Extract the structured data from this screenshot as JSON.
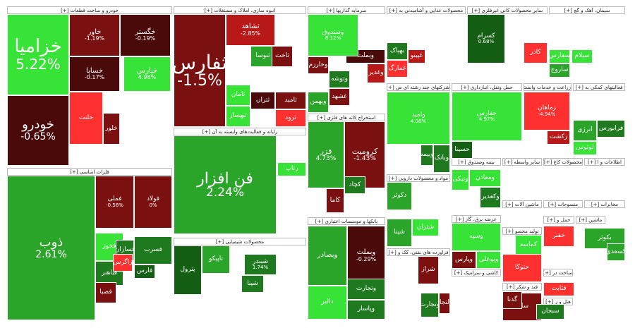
{
  "chart_data": {
    "type": "treemap",
    "colors": {
      "strong_up": "#36e336",
      "up": "#2aa52a",
      "mild_up": "#1f7a1f",
      "flat_up": "#155f15",
      "strong_down": "#ff3030",
      "down": "#b81818",
      "mild_down": "#7a1010",
      "flat_down": "#4a0a0a"
    },
    "sectors": [
      {
        "title": "خودرو و ساخت قطعات [+]"
      },
      {
        "title": "انبوه سازی، املاک و مستغلات [+]"
      },
      {
        "title": "سرمایه گذاریها [+]"
      },
      {
        "title": "محصولات غذایی و آشامیدنی به [+]"
      },
      {
        "title": "سایر محصولات کانی غیرفلزی [+]"
      },
      {
        "title": "سیمان، آهک و گچ [+]"
      },
      {
        "title": "رایانه و فعالیت‌های وابسته به آن [+]"
      },
      {
        "title": "استخراج کانه های فلزی [+]"
      },
      {
        "title": "شرکتهای چند رشته ای ص [+]"
      },
      {
        "title": "حمل ونقل، انبارداری [+]"
      },
      {
        "title": "زراعت و خدمات وابسته [+]"
      },
      {
        "title": "فعالیتهای کمکی به [+]"
      },
      {
        "title": "فلزات اساسی [+]"
      },
      {
        "title": "محصولات شیمیایی [+]"
      },
      {
        "title": "بانکها و موسسات اعتباری [+]"
      },
      {
        "title": "مواد و محصولات دارویی [+]"
      },
      {
        "title": "فراورده های نفتی، کک و [+]"
      },
      {
        "title": "بیمه وصندوق [+]"
      },
      {
        "title": "سایر واسطه [+]"
      },
      {
        "title": "محصولات کاغ [+]"
      },
      {
        "title": "اطلاعات و ا [+]"
      },
      {
        "title": "ماشین آلات [+]"
      },
      {
        "title": "منسوجات [+]"
      },
      {
        "title": "مخابرات [+]"
      },
      {
        "title": "عرضه برق، گاز [+]"
      },
      {
        "title": "حمل و [+]"
      },
      {
        "title": "ماشین [+]"
      },
      {
        "title": "تولید محصو [+]"
      },
      {
        "title": "کاشی و سرامیک [+]"
      },
      {
        "title": "قند و شکر [+]"
      },
      {
        "title": "ساخت در [+]"
      },
      {
        "title": "هتل و ر [+]"
      }
    ],
    "tiles": [
      {
        "name": "خزامیا",
        "change": "5.22%",
        "trend": "strong_up"
      },
      {
        "name": "خودرو",
        "change": "-0.65%",
        "trend": "flat_down"
      },
      {
        "name": "خاور",
        "change": "-1.19%",
        "trend": "mild_down"
      },
      {
        "name": "خگستر",
        "change": "-0.19%",
        "trend": "flat_down"
      },
      {
        "name": "خساپا",
        "change": "-0.17%",
        "trend": "flat_down"
      },
      {
        "name": "خپارس",
        "change": "4.98%",
        "trend": "strong_up"
      },
      {
        "name": "خلنت",
        "change": "",
        "trend": "strong_down"
      },
      {
        "name": "خلور",
        "change": "",
        "trend": "mild_down"
      },
      {
        "name": "ثفارس",
        "change": "-1.5%",
        "trend": "mild_down"
      },
      {
        "name": "ثشاهد",
        "change": "-2.85%",
        "trend": "down"
      },
      {
        "name": "ثنوسا",
        "change": "",
        "trend": "up"
      },
      {
        "name": "ثامان",
        "change": "",
        "trend": "strong_up"
      },
      {
        "name": "ثبهساز",
        "change": "",
        "trend": "strong_up"
      },
      {
        "name": "ثتران",
        "change": "",
        "trend": "flat_down"
      },
      {
        "name": "ثاخت",
        "change": "",
        "trend": "mild_down"
      },
      {
        "name": "ثامید",
        "change": "",
        "trend": "mild_down"
      },
      {
        "name": "ثرود",
        "change": "",
        "trend": "strong_down"
      },
      {
        "name": "وبملت",
        "change": "",
        "trend": "flat_down"
      },
      {
        "name": "وصندوق",
        "change": "8.12%",
        "trend": "strong_up"
      },
      {
        "name": "وخارزم",
        "change": "",
        "trend": "mild_down"
      },
      {
        "name": "وغدیر",
        "change": "",
        "trend": "down"
      },
      {
        "name": "وبهمن",
        "change": "",
        "trend": "up"
      },
      {
        "name": "وتوشه",
        "change": "",
        "trend": "mild_up"
      },
      {
        "name": "غشهد",
        "change": "",
        "trend": "mild_down"
      },
      {
        "name": "بهپاک",
        "change": "",
        "trend": "mild_up"
      },
      {
        "name": "غمارگ",
        "change": "",
        "trend": "strong_down"
      },
      {
        "name": "غپینو",
        "change": "",
        "trend": "down"
      },
      {
        "name": "کسرام",
        "change": "0.68%",
        "trend": "flat_up"
      },
      {
        "name": "کاذر",
        "change": "",
        "trend": "strong_down"
      },
      {
        "name": "سفارس",
        "change": "",
        "trend": "strong_up"
      },
      {
        "name": "ساروج",
        "change": "",
        "trend": "up"
      },
      {
        "name": "سیلام",
        "change": "",
        "trend": "strong_up"
      },
      {
        "name": "فن افزار",
        "change": "2.24%",
        "trend": "up"
      },
      {
        "name": "رتاپ",
        "change": "",
        "trend": "strong_up"
      },
      {
        "name": "فزر",
        "change": "4.73%",
        "trend": "up"
      },
      {
        "name": "کرومیت",
        "change": "-1.43%",
        "trend": "mild_down"
      },
      {
        "name": "کچاد",
        "change": "",
        "trend": "mild_up"
      },
      {
        "name": "کاما",
        "change": "",
        "trend": "mild_down"
      },
      {
        "name": "وامید",
        "change": "4.08%",
        "trend": "strong_up"
      },
      {
        "name": "وبانک",
        "change": "",
        "trend": "mild_up"
      },
      {
        "name": "وبیمه",
        "change": "",
        "trend": "mild_up"
      },
      {
        "name": "حفارس",
        "change": "4.97%",
        "trend": "strong_up"
      },
      {
        "name": "حسینا",
        "change": "",
        "trend": "flat_up"
      },
      {
        "name": "زماهان",
        "change": "-4.94%",
        "trend": "strong_down"
      },
      {
        "name": "زکشت",
        "change": "",
        "trend": "down"
      },
      {
        "name": "انرژی",
        "change": "",
        "trend": "up"
      },
      {
        "name": "لوتوس",
        "change": "",
        "trend": "strong_up"
      },
      {
        "name": "فرابورس",
        "change": "",
        "trend": "mild_up"
      },
      {
        "name": "ذوب",
        "change": "2.61%",
        "trend": "up"
      },
      {
        "name": "فملی",
        "change": "-0.58%",
        "trend": "mild_down"
      },
      {
        "name": "فولاد",
        "change": "0%",
        "trend": "mild_down"
      },
      {
        "name": "فخوز",
        "change": "",
        "trend": "strong_up"
      },
      {
        "name": "فسرب",
        "change": "",
        "trend": "mild_up"
      },
      {
        "name": "فباهنر",
        "change": "",
        "trend": "mild_up"
      },
      {
        "name": "فصبا",
        "change": "",
        "trend": "mild_down"
      },
      {
        "name": "فسازان",
        "change": "",
        "trend": "mild_up"
      },
      {
        "name": "زاگرس",
        "change": "",
        "trend": "strong_down"
      },
      {
        "name": "فارس",
        "change": "",
        "trend": "flat_up"
      },
      {
        "name": "پترول",
        "change": "",
        "trend": "flat_up"
      },
      {
        "name": "تاپیکو",
        "change": "",
        "trend": "up"
      },
      {
        "name": "شپنا",
        "change": "",
        "trend": "mild_up"
      },
      {
        "name": "شبندر",
        "change": "1.74%",
        "trend": "mild_up"
      },
      {
        "name": "وبصادر",
        "change": "",
        "trend": "up"
      },
      {
        "name": "وبملت",
        "change": "-0.29%",
        "trend": "flat_down"
      },
      {
        "name": "وتجارت",
        "change": "",
        "trend": "mild_up"
      },
      {
        "name": "وپاسار",
        "change": "",
        "trend": "mild_up"
      },
      {
        "name": "دالبر",
        "change": "",
        "trend": "strong_up"
      },
      {
        "name": "دکوثر",
        "change": "",
        "trend": "up"
      },
      {
        "name": "شپنا",
        "change": "",
        "trend": "up"
      },
      {
        "name": "شتران",
        "change": "",
        "trend": "strong_up"
      },
      {
        "name": "شراز",
        "change": "",
        "trend": "mild_down"
      },
      {
        "name": "وتجارت",
        "change": "",
        "trend": "mild_up"
      },
      {
        "name": "ولتجار",
        "change": "",
        "trend": "mild_down"
      },
      {
        "name": "ونیکی",
        "change": "",
        "trend": "strong_up"
      },
      {
        "name": "ومعادن",
        "change": "",
        "trend": "strong_up"
      },
      {
        "name": "وکغدیر",
        "change": "",
        "trend": "mild_up"
      },
      {
        "name": "وسپه",
        "change": "",
        "trend": "strong_up"
      },
      {
        "name": "وپارس",
        "change": "",
        "trend": "mild_down"
      },
      {
        "name": "وبوعلی",
        "change": "",
        "trend": "strong_up"
      },
      {
        "name": "بکوثر",
        "change": "",
        "trend": "up"
      },
      {
        "name": "کسعدی",
        "change": "",
        "trend": "up"
      },
      {
        "name": "کماسه",
        "change": "",
        "trend": "strong_up"
      },
      {
        "name": "قثابت",
        "change": "",
        "trend": "strong_down"
      },
      {
        "name": "ساینا",
        "change": "",
        "trend": "mild_down"
      },
      {
        "name": "گدنا",
        "change": "",
        "trend": "mild_down"
      },
      {
        "name": "سبجان",
        "change": "",
        "trend": "mild_up"
      },
      {
        "name": "خفنر",
        "change": "",
        "trend": "strong_down"
      },
      {
        "name": "حتوکا",
        "change": "",
        "trend": "strong_down"
      }
    ]
  }
}
